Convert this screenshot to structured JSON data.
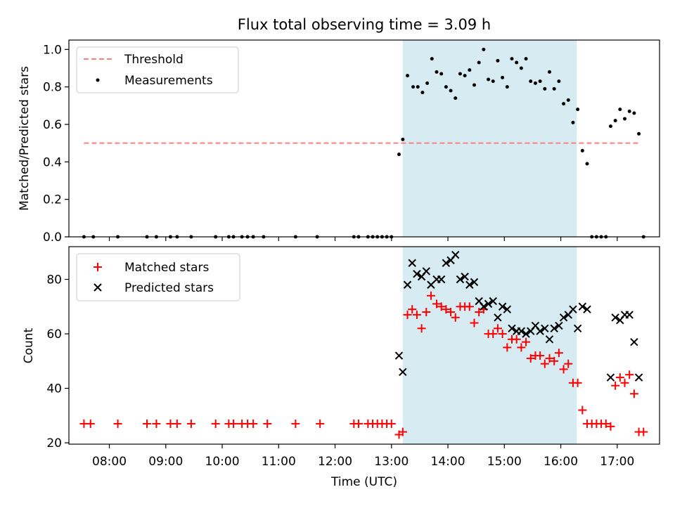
{
  "chart_data": [
    {
      "type": "scatter",
      "title": "Flux total observing time = 3.09 h",
      "xlabel": "",
      "ylabel": "Matched/Predicted stars",
      "ylim": [
        0,
        1.05
      ],
      "yticks": [
        "0.0",
        "0.2",
        "0.4",
        "0.6",
        "0.8",
        "1.0"
      ],
      "grid": false,
      "legend_position": "top-left",
      "shaded_span": [
        "13:12",
        "16:17"
      ],
      "shade_color": "#add8e6",
      "threshold": {
        "name": "Threshold",
        "value": 0.5,
        "x_range": [
          "07:33",
          "17:25"
        ],
        "color": "#ff7f7f"
      },
      "series": [
        {
          "name": "Measurements",
          "color": "#000000",
          "points": [
            [
              "07:33",
              0
            ],
            [
              "07:43",
              0
            ],
            [
              "08:09",
              0
            ],
            [
              "08:40",
              0
            ],
            [
              "08:50",
              0
            ],
            [
              "09:05",
              0
            ],
            [
              "09:12",
              0
            ],
            [
              "09:27",
              0
            ],
            [
              "09:53",
              0
            ],
            [
              "10:07",
              0
            ],
            [
              "10:12",
              0
            ],
            [
              "10:21",
              0
            ],
            [
              "10:27",
              0
            ],
            [
              "10:33",
              0
            ],
            [
              "10:44",
              0
            ],
            [
              "11:18",
              0
            ],
            [
              "11:41",
              0
            ],
            [
              "12:20",
              0
            ],
            [
              "12:25",
              0
            ],
            [
              "12:35",
              0
            ],
            [
              "12:40",
              0
            ],
            [
              "12:45",
              0
            ],
            [
              "12:50",
              0
            ],
            [
              "12:55",
              0
            ],
            [
              "13:00",
              0
            ],
            [
              "13:08",
              0.44
            ],
            [
              "13:12",
              0.52
            ],
            [
              "13:17",
              0.86
            ],
            [
              "13:23",
              0.8
            ],
            [
              "13:28",
              0.8
            ],
            [
              "13:33",
              0.77
            ],
            [
              "13:38",
              0.82
            ],
            [
              "13:43",
              0.95
            ],
            [
              "13:48",
              0.88
            ],
            [
              "13:53",
              0.87
            ],
            [
              "13:58",
              0.8
            ],
            [
              "14:03",
              0.78
            ],
            [
              "14:08",
              0.74
            ],
            [
              "14:13",
              0.87
            ],
            [
              "14:18",
              0.86
            ],
            [
              "14:23",
              0.89
            ],
            [
              "14:28",
              0.81
            ],
            [
              "14:33",
              0.93
            ],
            [
              "14:38",
              1.0
            ],
            [
              "14:43",
              0.84
            ],
            [
              "14:48",
              0.83
            ],
            [
              "14:53",
              0.94
            ],
            [
              "14:58",
              0.85
            ],
            [
              "15:03",
              0.8
            ],
            [
              "15:08",
              0.95
            ],
            [
              "15:13",
              0.93
            ],
            [
              "15:18",
              0.9
            ],
            [
              "15:23",
              0.95
            ],
            [
              "15:28",
              0.83
            ],
            [
              "15:33",
              0.82
            ],
            [
              "15:38",
              0.83
            ],
            [
              "15:43",
              0.79
            ],
            [
              "15:48",
              0.88
            ],
            [
              "15:53",
              0.79
            ],
            [
              "15:58",
              0.83
            ],
            [
              "16:03",
              0.71
            ],
            [
              "16:08",
              0.73
            ],
            [
              "16:13",
              0.61
            ],
            [
              "16:18",
              0.68
            ],
            [
              "16:23",
              0.46
            ],
            [
              "16:28",
              0.39
            ],
            [
              "16:33",
              0
            ],
            [
              "16:38",
              0
            ],
            [
              "16:43",
              0
            ],
            [
              "16:48",
              0
            ],
            [
              "16:53",
              0.59
            ],
            [
              "16:58",
              0.62
            ],
            [
              "17:03",
              0.68
            ],
            [
              "17:08",
              0.63
            ],
            [
              "17:13",
              0.67
            ],
            [
              "17:18",
              0.66
            ],
            [
              "17:23",
              0.55
            ],
            [
              "17:28",
              0
            ]
          ]
        }
      ]
    },
    {
      "type": "scatter",
      "title": "",
      "xlabel": "Time (UTC)",
      "ylabel": "Count",
      "ylim": [
        19.5,
        92
      ],
      "yticks": [
        "20",
        "40",
        "60",
        "80"
      ],
      "xticks": [
        "08:00",
        "09:00",
        "10:00",
        "11:00",
        "12:00",
        "13:00",
        "14:00",
        "15:00",
        "16:00",
        "17:00"
      ],
      "grid": false,
      "legend_position": "top-left",
      "shaded_span": [
        "13:12",
        "16:17"
      ],
      "shade_color": "#add8e6",
      "series": [
        {
          "name": "Matched stars",
          "marker": "plus",
          "color": "#ff0000",
          "points": [
            [
              "07:33",
              27
            ],
            [
              "07:40",
              27
            ],
            [
              "08:09",
              27
            ],
            [
              "08:40",
              27
            ],
            [
              "08:50",
              27
            ],
            [
              "09:05",
              27
            ],
            [
              "09:12",
              27
            ],
            [
              "09:27",
              27
            ],
            [
              "09:53",
              27
            ],
            [
              "10:07",
              27
            ],
            [
              "10:12",
              27
            ],
            [
              "10:21",
              27
            ],
            [
              "10:27",
              27
            ],
            [
              "10:33",
              27
            ],
            [
              "10:48",
              27
            ],
            [
              "11:18",
              27
            ],
            [
              "11:44",
              27
            ],
            [
              "12:20",
              27
            ],
            [
              "12:25",
              27
            ],
            [
              "12:35",
              27
            ],
            [
              "12:40",
              27
            ],
            [
              "12:45",
              27
            ],
            [
              "12:50",
              27
            ],
            [
              "12:55",
              27
            ],
            [
              "13:00",
              27
            ],
            [
              "13:08",
              23
            ],
            [
              "13:12",
              24
            ],
            [
              "13:17",
              67
            ],
            [
              "13:22",
              69
            ],
            [
              "13:27",
              67
            ],
            [
              "13:32",
              62
            ],
            [
              "13:37",
              68
            ],
            [
              "13:42",
              74
            ],
            [
              "13:48",
              71
            ],
            [
              "13:53",
              70
            ],
            [
              "13:58",
              69
            ],
            [
              "14:03",
              68
            ],
            [
              "14:08",
              66
            ],
            [
              "14:13",
              70
            ],
            [
              "14:18",
              70
            ],
            [
              "14:23",
              70
            ],
            [
              "14:28",
              64
            ],
            [
              "14:33",
              68
            ],
            [
              "14:38",
              69
            ],
            [
              "14:43",
              60
            ],
            [
              "14:48",
              60
            ],
            [
              "14:53",
              62
            ],
            [
              "14:58",
              60
            ],
            [
              "15:03",
              55
            ],
            [
              "15:08",
              58
            ],
            [
              "15:13",
              58
            ],
            [
              "15:18",
              55
            ],
            [
              "15:23",
              57
            ],
            [
              "15:28",
              51
            ],
            [
              "15:33",
              52
            ],
            [
              "15:38",
              52
            ],
            [
              "15:43",
              49
            ],
            [
              "15:48",
              51
            ],
            [
              "15:53",
              50
            ],
            [
              "15:58",
              53
            ],
            [
              "16:03",
              47
            ],
            [
              "16:08",
              49
            ],
            [
              "16:13",
              42
            ],
            [
              "16:18",
              42
            ],
            [
              "16:23",
              32
            ],
            [
              "16:28",
              27
            ],
            [
              "16:33",
              27
            ],
            [
              "16:38",
              27
            ],
            [
              "16:43",
              27
            ],
            [
              "16:48",
              27
            ],
            [
              "16:53",
              26
            ],
            [
              "16:58",
              41
            ],
            [
              "17:03",
              44
            ],
            [
              "17:08",
              42
            ],
            [
              "17:13",
              45
            ],
            [
              "17:18",
              38
            ],
            [
              "17:23",
              24
            ],
            [
              "17:28",
              24
            ]
          ]
        },
        {
          "name": "Predicted stars",
          "marker": "x",
          "color": "#000000",
          "points": [
            [
              "13:08",
              52
            ],
            [
              "13:12",
              46
            ],
            [
              "13:17",
              78
            ],
            [
              "13:22",
              86
            ],
            [
              "13:27",
              82
            ],
            [
              "13:32",
              81
            ],
            [
              "13:37",
              83
            ],
            [
              "13:42",
              78
            ],
            [
              "13:48",
              80
            ],
            [
              "13:53",
              80
            ],
            [
              "13:58",
              86
            ],
            [
              "14:03",
              87
            ],
            [
              "14:08",
              89
            ],
            [
              "14:13",
              80
            ],
            [
              "14:18",
              81
            ],
            [
              "14:23",
              78
            ],
            [
              "14:28",
              79
            ],
            [
              "14:33",
              72
            ],
            [
              "14:38",
              70
            ],
            [
              "14:43",
              71
            ],
            [
              "14:48",
              72
            ],
            [
              "14:53",
              66
            ],
            [
              "14:58",
              70
            ],
            [
              "15:03",
              69
            ],
            [
              "15:08",
              62
            ],
            [
              "15:13",
              61
            ],
            [
              "15:18",
              61
            ],
            [
              "15:23",
              60
            ],
            [
              "15:28",
              61
            ],
            [
              "15:33",
              63
            ],
            [
              "15:38",
              61
            ],
            [
              "15:43",
              62
            ],
            [
              "15:48",
              58
            ],
            [
              "15:53",
              62
            ],
            [
              "15:58",
              63
            ],
            [
              "16:03",
              66
            ],
            [
              "16:08",
              67
            ],
            [
              "16:13",
              69
            ],
            [
              "16:18",
              62
            ],
            [
              "16:23",
              70
            ],
            [
              "16:28",
              69
            ],
            [
              "16:53",
              44
            ],
            [
              "16:58",
              66
            ],
            [
              "17:03",
              65
            ],
            [
              "17:08",
              67
            ],
            [
              "17:13",
              67
            ],
            [
              "17:18",
              57
            ],
            [
              "17:23",
              44
            ]
          ]
        }
      ]
    }
  ]
}
